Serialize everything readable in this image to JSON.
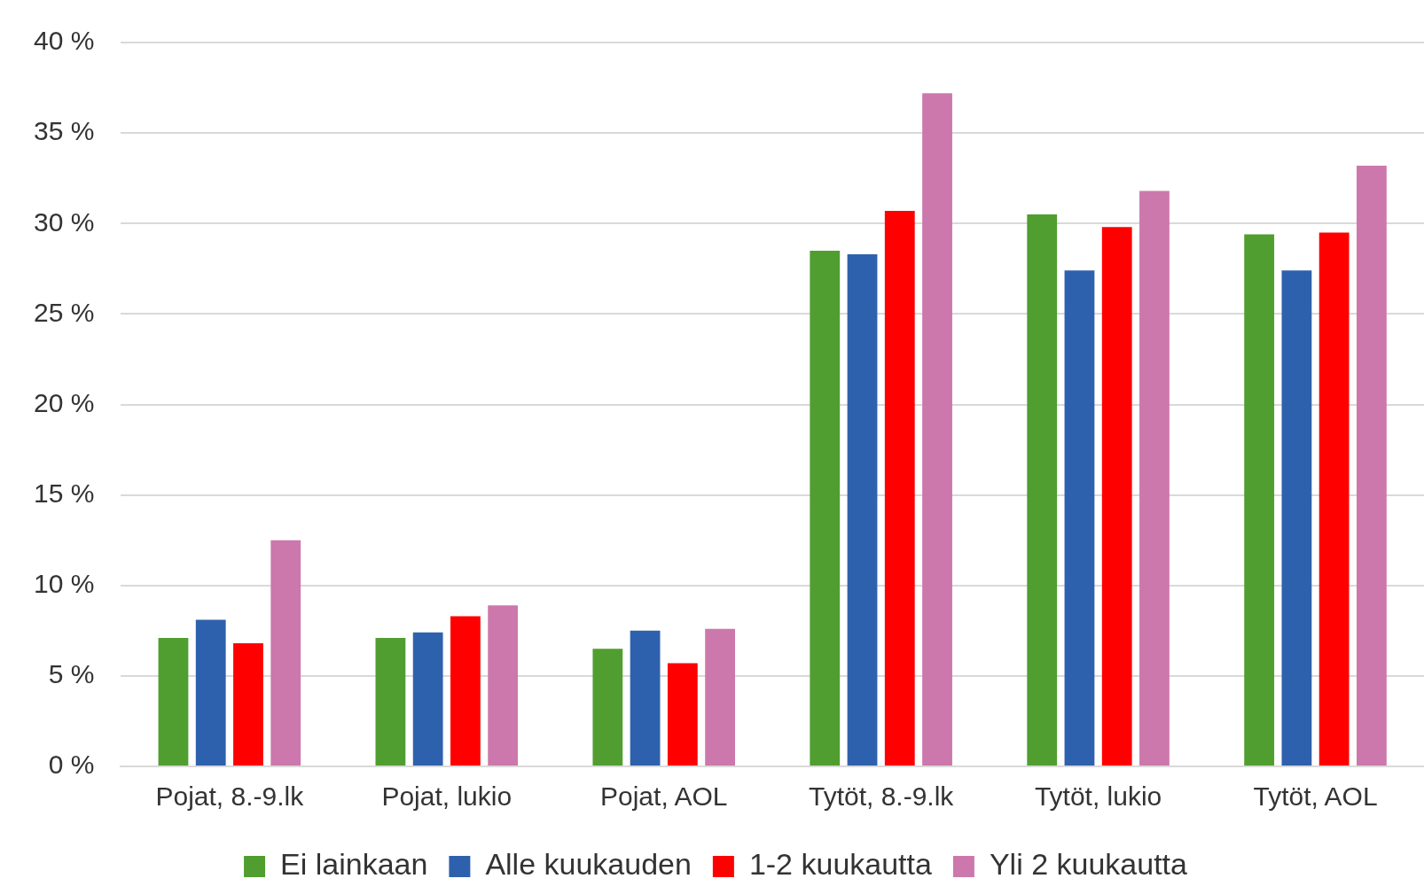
{
  "chart_data": {
    "type": "bar",
    "categories": [
      "Pojat, 8.-9.lk",
      "Pojat, lukio",
      "Pojat, AOL",
      "Tytöt, 8.-9.lk",
      "Tytöt, lukio",
      "Tytöt, AOL"
    ],
    "series": [
      {
        "name": "Ei lainkaan",
        "color": "#509e2f",
        "values": [
          7.1,
          7.1,
          6.5,
          28.5,
          30.5,
          29.4
        ]
      },
      {
        "name": "Alle kuukauden",
        "color": "#2e61ad",
        "values": [
          8.1,
          7.4,
          7.5,
          28.3,
          27.4,
          27.4
        ]
      },
      {
        "name": "1-2 kuukautta",
        "color": "#ff0000",
        "values": [
          6.8,
          8.3,
          5.7,
          30.7,
          29.8,
          29.5
        ]
      },
      {
        "name": "Yli 2 kuukautta",
        "color": "#cc78ac",
        "values": [
          12.5,
          8.9,
          7.6,
          37.2,
          31.8,
          33.2
        ]
      }
    ],
    "ylim": [
      0,
      40
    ],
    "yticks": [
      {
        "value": 0,
        "label": "0 %"
      },
      {
        "value": 5,
        "label": "5 %"
      },
      {
        "value": 10,
        "label": "10 %"
      },
      {
        "value": 15,
        "label": "15 %"
      },
      {
        "value": 20,
        "label": "20 %"
      },
      {
        "value": 25,
        "label": "25 %"
      },
      {
        "value": 30,
        "label": "30 %"
      },
      {
        "value": 35,
        "label": "35 %"
      },
      {
        "value": 40,
        "label": "40 %"
      }
    ],
    "grid": "y",
    "legend": "bottom"
  }
}
